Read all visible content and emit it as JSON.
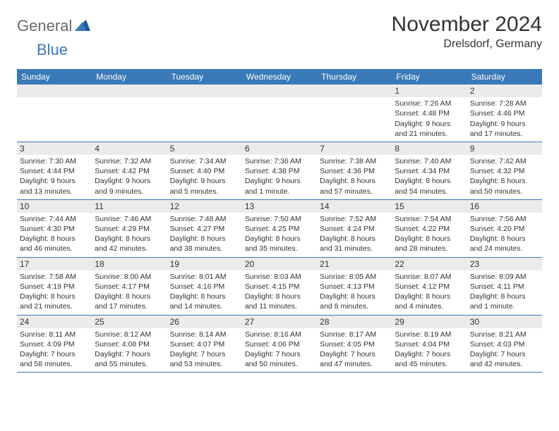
{
  "logo": {
    "word1": "General",
    "word2": "Blue"
  },
  "title": "November 2024",
  "subtitle": "Drelsdorf, Germany",
  "colors": {
    "header_bg": "#3a79b7",
    "header_text": "#ffffff",
    "daynum_bg": "#ebebeb",
    "rule": "#3a79b7",
    "text": "#333333",
    "logo_gray": "#6a6a6a",
    "logo_blue": "#3a79b7"
  },
  "day_names": [
    "Sunday",
    "Monday",
    "Tuesday",
    "Wednesday",
    "Thursday",
    "Friday",
    "Saturday"
  ],
  "weeks": [
    [
      null,
      null,
      null,
      null,
      null,
      {
        "n": "1",
        "sunrise": "Sunrise: 7:26 AM",
        "sunset": "Sunset: 4:48 PM",
        "day1": "Daylight: 9 hours",
        "day2": "and 21 minutes."
      },
      {
        "n": "2",
        "sunrise": "Sunrise: 7:28 AM",
        "sunset": "Sunset: 4:46 PM",
        "day1": "Daylight: 9 hours",
        "day2": "and 17 minutes."
      }
    ],
    [
      {
        "n": "3",
        "sunrise": "Sunrise: 7:30 AM",
        "sunset": "Sunset: 4:44 PM",
        "day1": "Daylight: 9 hours",
        "day2": "and 13 minutes."
      },
      {
        "n": "4",
        "sunrise": "Sunrise: 7:32 AM",
        "sunset": "Sunset: 4:42 PM",
        "day1": "Daylight: 9 hours",
        "day2": "and 9 minutes."
      },
      {
        "n": "5",
        "sunrise": "Sunrise: 7:34 AM",
        "sunset": "Sunset: 4:40 PM",
        "day1": "Daylight: 9 hours",
        "day2": "and 5 minutes."
      },
      {
        "n": "6",
        "sunrise": "Sunrise: 7:36 AM",
        "sunset": "Sunset: 4:38 PM",
        "day1": "Daylight: 9 hours",
        "day2": "and 1 minute."
      },
      {
        "n": "7",
        "sunrise": "Sunrise: 7:38 AM",
        "sunset": "Sunset: 4:36 PM",
        "day1": "Daylight: 8 hours",
        "day2": "and 57 minutes."
      },
      {
        "n": "8",
        "sunrise": "Sunrise: 7:40 AM",
        "sunset": "Sunset: 4:34 PM",
        "day1": "Daylight: 8 hours",
        "day2": "and 54 minutes."
      },
      {
        "n": "9",
        "sunrise": "Sunrise: 7:42 AM",
        "sunset": "Sunset: 4:32 PM",
        "day1": "Daylight: 8 hours",
        "day2": "and 50 minutes."
      }
    ],
    [
      {
        "n": "10",
        "sunrise": "Sunrise: 7:44 AM",
        "sunset": "Sunset: 4:30 PM",
        "day1": "Daylight: 8 hours",
        "day2": "and 46 minutes."
      },
      {
        "n": "11",
        "sunrise": "Sunrise: 7:46 AM",
        "sunset": "Sunset: 4:29 PM",
        "day1": "Daylight: 8 hours",
        "day2": "and 42 minutes."
      },
      {
        "n": "12",
        "sunrise": "Sunrise: 7:48 AM",
        "sunset": "Sunset: 4:27 PM",
        "day1": "Daylight: 8 hours",
        "day2": "and 38 minutes."
      },
      {
        "n": "13",
        "sunrise": "Sunrise: 7:50 AM",
        "sunset": "Sunset: 4:25 PM",
        "day1": "Daylight: 8 hours",
        "day2": "and 35 minutes."
      },
      {
        "n": "14",
        "sunrise": "Sunrise: 7:52 AM",
        "sunset": "Sunset: 4:24 PM",
        "day1": "Daylight: 8 hours",
        "day2": "and 31 minutes."
      },
      {
        "n": "15",
        "sunrise": "Sunrise: 7:54 AM",
        "sunset": "Sunset: 4:22 PM",
        "day1": "Daylight: 8 hours",
        "day2": "and 28 minutes."
      },
      {
        "n": "16",
        "sunrise": "Sunrise: 7:56 AM",
        "sunset": "Sunset: 4:20 PM",
        "day1": "Daylight: 8 hours",
        "day2": "and 24 minutes."
      }
    ],
    [
      {
        "n": "17",
        "sunrise": "Sunrise: 7:58 AM",
        "sunset": "Sunset: 4:19 PM",
        "day1": "Daylight: 8 hours",
        "day2": "and 21 minutes."
      },
      {
        "n": "18",
        "sunrise": "Sunrise: 8:00 AM",
        "sunset": "Sunset: 4:17 PM",
        "day1": "Daylight: 8 hours",
        "day2": "and 17 minutes."
      },
      {
        "n": "19",
        "sunrise": "Sunrise: 8:01 AM",
        "sunset": "Sunset: 4:16 PM",
        "day1": "Daylight: 8 hours",
        "day2": "and 14 minutes."
      },
      {
        "n": "20",
        "sunrise": "Sunrise: 8:03 AM",
        "sunset": "Sunset: 4:15 PM",
        "day1": "Daylight: 8 hours",
        "day2": "and 11 minutes."
      },
      {
        "n": "21",
        "sunrise": "Sunrise: 8:05 AM",
        "sunset": "Sunset: 4:13 PM",
        "day1": "Daylight: 8 hours",
        "day2": "and 8 minutes."
      },
      {
        "n": "22",
        "sunrise": "Sunrise: 8:07 AM",
        "sunset": "Sunset: 4:12 PM",
        "day1": "Daylight: 8 hours",
        "day2": "and 4 minutes."
      },
      {
        "n": "23",
        "sunrise": "Sunrise: 8:09 AM",
        "sunset": "Sunset: 4:11 PM",
        "day1": "Daylight: 8 hours",
        "day2": "and 1 minute."
      }
    ],
    [
      {
        "n": "24",
        "sunrise": "Sunrise: 8:11 AM",
        "sunset": "Sunset: 4:09 PM",
        "day1": "Daylight: 7 hours",
        "day2": "and 58 minutes."
      },
      {
        "n": "25",
        "sunrise": "Sunrise: 8:12 AM",
        "sunset": "Sunset: 4:08 PM",
        "day1": "Daylight: 7 hours",
        "day2": "and 55 minutes."
      },
      {
        "n": "26",
        "sunrise": "Sunrise: 8:14 AM",
        "sunset": "Sunset: 4:07 PM",
        "day1": "Daylight: 7 hours",
        "day2": "and 53 minutes."
      },
      {
        "n": "27",
        "sunrise": "Sunrise: 8:16 AM",
        "sunset": "Sunset: 4:06 PM",
        "day1": "Daylight: 7 hours",
        "day2": "and 50 minutes."
      },
      {
        "n": "28",
        "sunrise": "Sunrise: 8:17 AM",
        "sunset": "Sunset: 4:05 PM",
        "day1": "Daylight: 7 hours",
        "day2": "and 47 minutes."
      },
      {
        "n": "29",
        "sunrise": "Sunrise: 8:19 AM",
        "sunset": "Sunset: 4:04 PM",
        "day1": "Daylight: 7 hours",
        "day2": "and 45 minutes."
      },
      {
        "n": "30",
        "sunrise": "Sunrise: 8:21 AM",
        "sunset": "Sunset: 4:03 PM",
        "day1": "Daylight: 7 hours",
        "day2": "and 42 minutes."
      }
    ]
  ]
}
